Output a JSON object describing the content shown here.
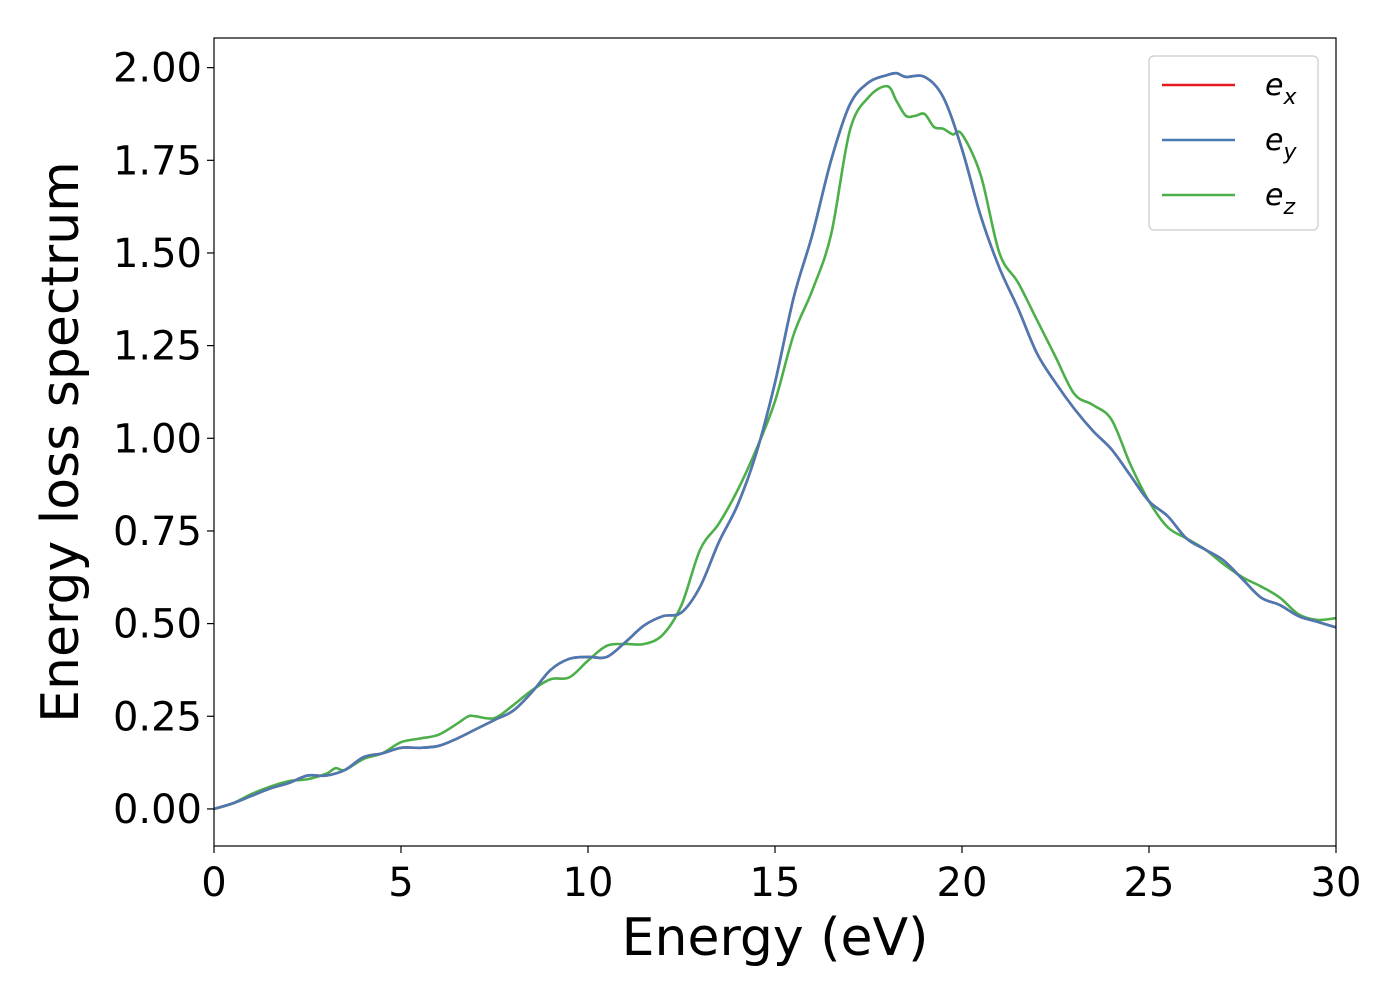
{
  "chart_data": {
    "type": "line",
    "title": "",
    "xlabel": "Energy (eV)",
    "ylabel": "Energy loss spectrum",
    "xlim": [
      0,
      30
    ],
    "ylim": [
      -0.1,
      2.08
    ],
    "xticks": [
      0,
      5,
      10,
      15,
      20,
      25,
      30
    ],
    "xtick_labels": [
      "0",
      "5",
      "10",
      "15",
      "20",
      "25",
      "30"
    ],
    "yticks": [
      0.0,
      0.25,
      0.5,
      0.75,
      1.0,
      1.25,
      1.5,
      1.75,
      2.0
    ],
    "ytick_labels": [
      "0.00",
      "0.25",
      "0.50",
      "0.75",
      "1.00",
      "1.25",
      "1.50",
      "1.75",
      "2.00"
    ],
    "grid": false,
    "legend_position": "top-right",
    "series": [
      {
        "name": "e",
        "subscript": "x",
        "color": "#e41a1c",
        "x": [
          0,
          0.5,
          1,
          1.5,
          2,
          2.5,
          3,
          3.5,
          4,
          4.5,
          5,
          5.5,
          6,
          6.5,
          7,
          7.5,
          8,
          8.5,
          9,
          9.5,
          10,
          10.5,
          11,
          11.5,
          12,
          12.5,
          13,
          13.5,
          14,
          14.5,
          15,
          15.5,
          16,
          16.5,
          17,
          17.5,
          18,
          18.25,
          18.5,
          19,
          19.5,
          20,
          20.5,
          21,
          21.5,
          22,
          22.5,
          23,
          23.5,
          24,
          24.5,
          25,
          25.5,
          26,
          26.5,
          27,
          27.5,
          28,
          28.5,
          29,
          29.5,
          30
        ],
        "y": [
          0.0,
          0.015,
          0.035,
          0.055,
          0.07,
          0.09,
          0.09,
          0.105,
          0.14,
          0.15,
          0.165,
          0.165,
          0.17,
          0.19,
          0.215,
          0.24,
          0.265,
          0.315,
          0.375,
          0.405,
          0.41,
          0.41,
          0.45,
          0.495,
          0.52,
          0.53,
          0.6,
          0.72,
          0.82,
          0.96,
          1.15,
          1.38,
          1.55,
          1.75,
          1.9,
          1.96,
          1.98,
          1.985,
          1.975,
          1.975,
          1.92,
          1.78,
          1.6,
          1.46,
          1.35,
          1.23,
          1.15,
          1.08,
          1.02,
          0.97,
          0.9,
          0.83,
          0.79,
          0.73,
          0.7,
          0.67,
          0.62,
          0.57,
          0.55,
          0.52,
          0.505,
          0.49
        ]
      },
      {
        "name": "e",
        "subscript": "y",
        "color": "#4a7ab4",
        "x": [
          0,
          0.5,
          1,
          1.5,
          2,
          2.5,
          3,
          3.5,
          4,
          4.5,
          5,
          5.5,
          6,
          6.5,
          7,
          7.5,
          8,
          8.5,
          9,
          9.5,
          10,
          10.5,
          11,
          11.5,
          12,
          12.5,
          13,
          13.5,
          14,
          14.5,
          15,
          15.5,
          16,
          16.5,
          17,
          17.5,
          18,
          18.25,
          18.5,
          19,
          19.5,
          20,
          20.5,
          21,
          21.5,
          22,
          22.5,
          23,
          23.5,
          24,
          24.5,
          25,
          25.5,
          26,
          26.5,
          27,
          27.5,
          28,
          28.5,
          29,
          29.5,
          30
        ],
        "y": [
          0.0,
          0.015,
          0.035,
          0.055,
          0.07,
          0.09,
          0.09,
          0.105,
          0.14,
          0.15,
          0.165,
          0.165,
          0.17,
          0.19,
          0.215,
          0.24,
          0.265,
          0.315,
          0.375,
          0.405,
          0.41,
          0.41,
          0.45,
          0.495,
          0.52,
          0.53,
          0.6,
          0.72,
          0.82,
          0.96,
          1.15,
          1.38,
          1.55,
          1.75,
          1.9,
          1.96,
          1.98,
          1.985,
          1.975,
          1.975,
          1.92,
          1.78,
          1.6,
          1.46,
          1.35,
          1.23,
          1.15,
          1.08,
          1.02,
          0.97,
          0.9,
          0.83,
          0.79,
          0.73,
          0.7,
          0.67,
          0.62,
          0.57,
          0.55,
          0.52,
          0.505,
          0.49
        ]
      },
      {
        "name": "e",
        "subscript": "z",
        "color": "#4daf4a",
        "x": [
          0,
          0.5,
          1,
          1.5,
          2,
          2.5,
          3,
          3.25,
          3.5,
          4,
          4.5,
          5,
          5.5,
          6,
          6.5,
          6.8,
          7,
          7.5,
          8,
          8.5,
          9,
          9.5,
          10,
          10.5,
          11,
          11.5,
          12,
          12.5,
          13,
          13.5,
          14,
          14.5,
          15,
          15.5,
          16,
          16.5,
          17,
          17.5,
          18,
          18.25,
          18.5,
          18.75,
          19,
          19.25,
          19.5,
          19.75,
          20,
          20.5,
          21,
          21.5,
          22,
          22.5,
          23,
          23.5,
          24,
          24.5,
          25,
          25.5,
          26,
          26.5,
          27,
          27.5,
          28,
          28.5,
          29,
          29.5,
          30
        ],
        "y": [
          0.0,
          0.015,
          0.04,
          0.06,
          0.075,
          0.08,
          0.095,
          0.11,
          0.105,
          0.135,
          0.15,
          0.18,
          0.19,
          0.2,
          0.23,
          0.25,
          0.25,
          0.245,
          0.28,
          0.32,
          0.35,
          0.355,
          0.4,
          0.44,
          0.445,
          0.445,
          0.47,
          0.55,
          0.7,
          0.77,
          0.86,
          0.97,
          1.1,
          1.28,
          1.4,
          1.55,
          1.83,
          1.92,
          1.95,
          1.91,
          1.87,
          1.87,
          1.875,
          1.84,
          1.835,
          1.82,
          1.82,
          1.71,
          1.5,
          1.42,
          1.32,
          1.22,
          1.12,
          1.09,
          1.05,
          0.93,
          0.83,
          0.76,
          0.73,
          0.7,
          0.66,
          0.625,
          0.6,
          0.57,
          0.525,
          0.51,
          0.515
        ]
      }
    ]
  }
}
